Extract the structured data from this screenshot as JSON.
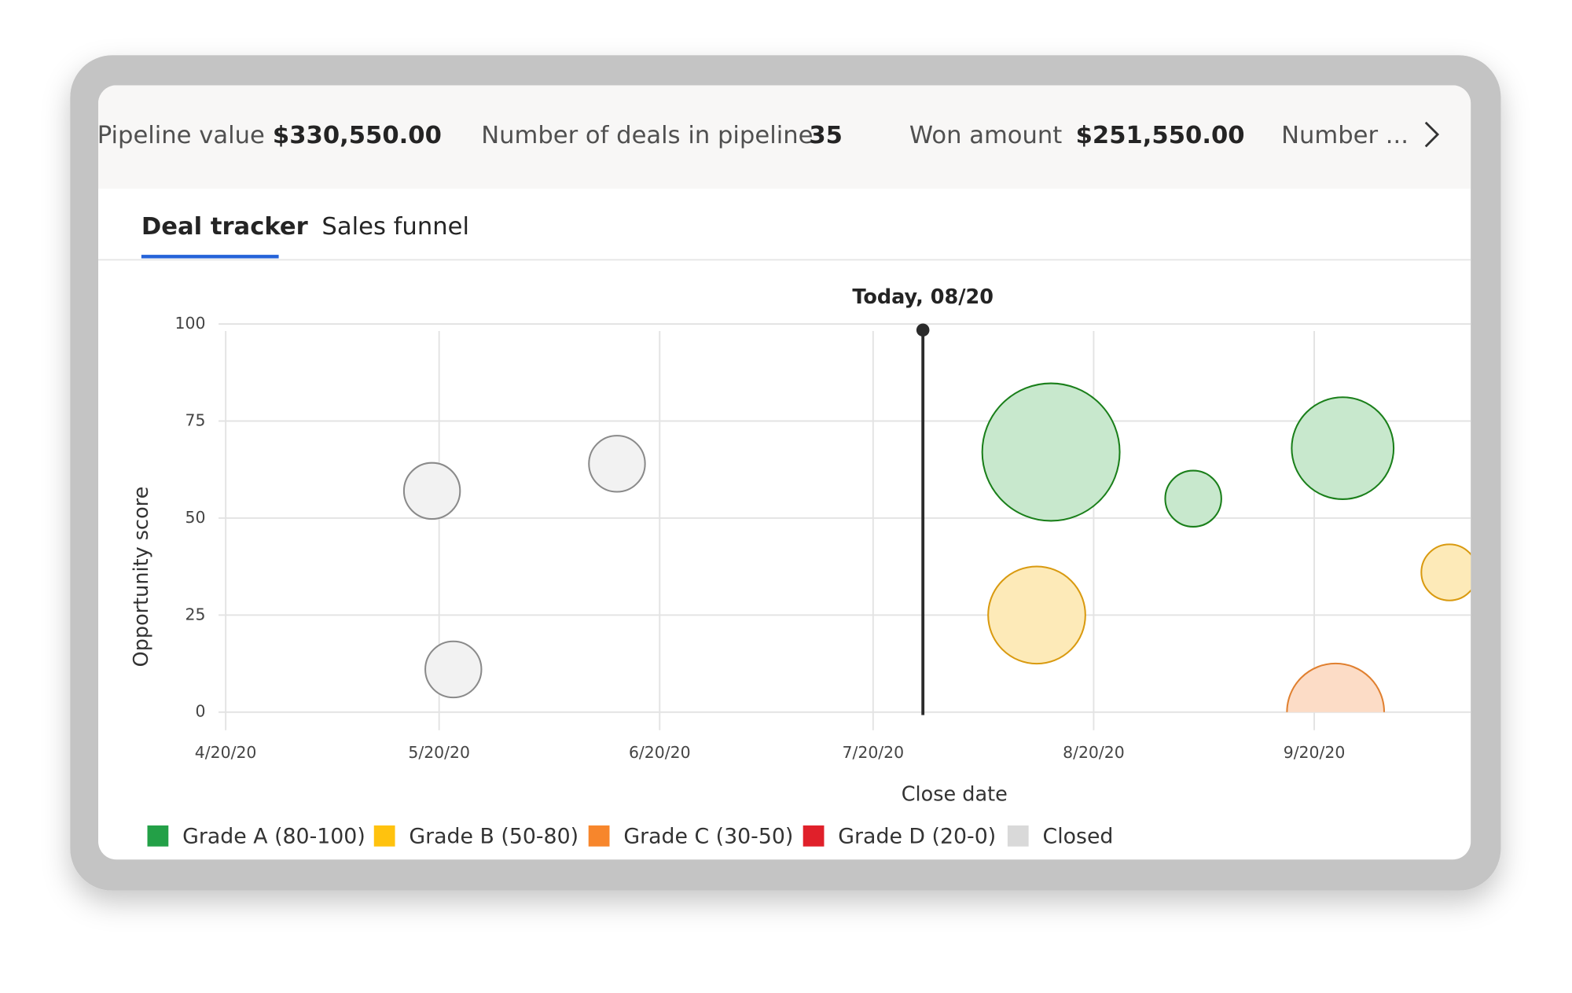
{
  "kpis": [
    {
      "label": "Pipeline value",
      "value": "$330,550.00"
    },
    {
      "label": "Number of deals in pipeline",
      "value": "35"
    },
    {
      "label": "Won amount",
      "value": "$251,550.00"
    },
    {
      "label": "Number ..."
    }
  ],
  "tabs": [
    "Deal tracker",
    "Sales funnel"
  ],
  "chart_data": {
    "type": "bubble",
    "xlabel": "Close date",
    "ylabel": "Opportunity score",
    "xlim": [
      "2020-04-19",
      "2020-10-12"
    ],
    "xticks": [
      {
        "value": "2020-04-20",
        "label": "4/20/20"
      },
      {
        "value": "2020-05-20",
        "label": "5/20/20"
      },
      {
        "value": "2020-06-20",
        "label": "6/20/20"
      },
      {
        "value": "2020-07-20",
        "label": "7/20/20"
      },
      {
        "value": "2020-08-20",
        "label": "8/20/20"
      },
      {
        "value": "2020-09-20",
        "label": "9/20/20"
      }
    ],
    "ylim": [
      0,
      100
    ],
    "yticks": [
      0,
      25,
      50,
      75,
      100
    ],
    "grid": true,
    "annotations": [
      {
        "text": "Today, 08/20",
        "x": "2020-07-27"
      }
    ],
    "series": [
      {
        "name": "Grade A (80-100)",
        "color": "#23a047",
        "fill": "#c8e8cd",
        "edgecolor": "#1a7f1a",
        "x": [
          "2020-08-14",
          "2020-09-03",
          "2020-09-24"
        ],
        "values": [
          67,
          55,
          68
        ],
        "sizes": [
          60,
          10,
          33
        ]
      },
      {
        "name": "Grade B (50-80)",
        "color": "#ffc20e",
        "fill": "#fdeab8",
        "edgecolor": "#d99a10",
        "x": [
          "2020-08-12",
          "2020-10-09"
        ],
        "values": [
          25,
          36
        ],
        "sizes": [
          30,
          10
        ]
      },
      {
        "name": "Grade C (30-50)",
        "color": "#f7862c",
        "fill": "#fcdcc6",
        "edgecolor": "#e08030",
        "x": [
          "2020-09-23"
        ],
        "values": [
          0
        ],
        "sizes": [
          30
        ]
      },
      {
        "name": "Grade D (20-0)",
        "color": "#e0202a",
        "fill": "#f8c8ca",
        "edgecolor": "#b01820",
        "x": [],
        "values": [],
        "sizes": []
      },
      {
        "name": "Closed",
        "color": "#d9d9d9",
        "fill": "#f2f2f2",
        "edgecolor": "#8a8a8a",
        "x": [
          "2020-05-19",
          "2020-06-14",
          "2020-05-22"
        ],
        "values": [
          57,
          64,
          11
        ],
        "sizes": [
          10,
          10,
          10
        ]
      }
    ]
  }
}
